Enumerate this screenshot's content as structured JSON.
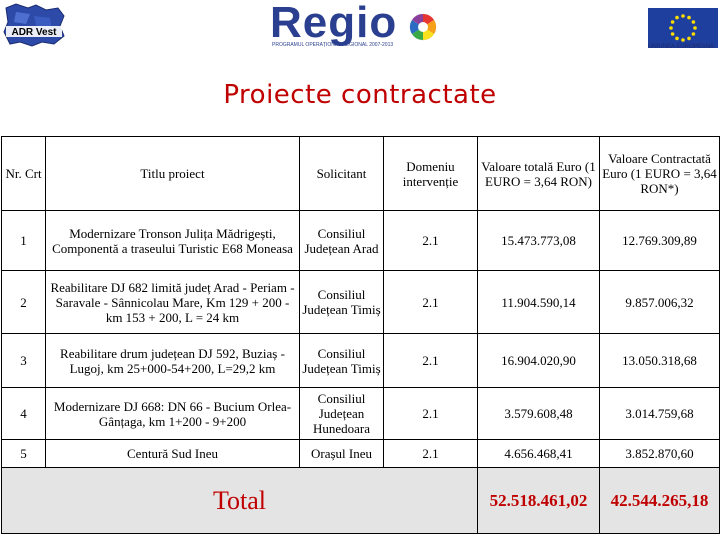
{
  "header": {
    "adr_logo_text": "ADR Vest",
    "regio_brand": "Regio",
    "regio_subtitle": "PROGRAMUL OPERAȚIONAL REGIONAL 2007-2013",
    "eu_caption": "UNIUNEA EUROPEANĂ"
  },
  "title": "Proiecte contractate",
  "table": {
    "headers": {
      "nr": "Nr. Crt",
      "titlu": "Titlu proiect",
      "solicitant": "Solicitant",
      "domeniu": "Domeniu intervenție",
      "valoare_totala": "Valoare totală Euro (1 EURO = 3,64 RON)",
      "valoare_contractata": "Valoare Contractată Euro (1 EURO = 3,64 RON*)"
    },
    "rows": [
      {
        "nr": "1",
        "titlu": "Modernizare Tronson Julița Mădrigești, Componentă a traseului Turistic E68 Moneasa",
        "solicitant": "Consiliul Județean Arad",
        "domeniu": "2.1",
        "valoare_totala": "15.473.773,08",
        "valoare_contractata": "12.769.309,89"
      },
      {
        "nr": "2",
        "titlu": "Reabilitare DJ 682 limită județ Arad - Periam - Saravale - Sânnicolau Mare, Km 129 + 200 - km 153 + 200, L = 24 km",
        "solicitant": "Consiliul Județean Timiș",
        "domeniu": "2.1",
        "valoare_totala": "11.904.590,14",
        "valoare_contractata": "9.857.006,32"
      },
      {
        "nr": "3",
        "titlu": "Reabilitare drum județean DJ 592, Buziaș - Lugoj, km 25+000-54+200, L=29,2 km",
        "solicitant": "Consiliul Județean Timiș",
        "domeniu": "2.1",
        "valoare_totala": "16.904.020,90",
        "valoare_contractata": "13.050.318,68"
      },
      {
        "nr": "4",
        "titlu": "Modernizare DJ 668: DN 66 - Bucium Orlea- Gânțaga, km 1+200 - 9+200",
        "solicitant": "Consiliul Județean Hunedoara",
        "domeniu": "2.1",
        "valoare_totala": "3.579.608,48",
        "valoare_contractata": "3.014.759,68"
      },
      {
        "nr": "5",
        "titlu": "Centură Sud Ineu",
        "solicitant": "Orașul Ineu",
        "domeniu": "2.1",
        "valoare_totala": "4.656.468,41",
        "valoare_contractata": "3.852.870,60"
      }
    ],
    "total": {
      "label": "Total",
      "valoare_totala": "52.518.461,02",
      "valoare_contractata": "42.544.265,18"
    }
  }
}
